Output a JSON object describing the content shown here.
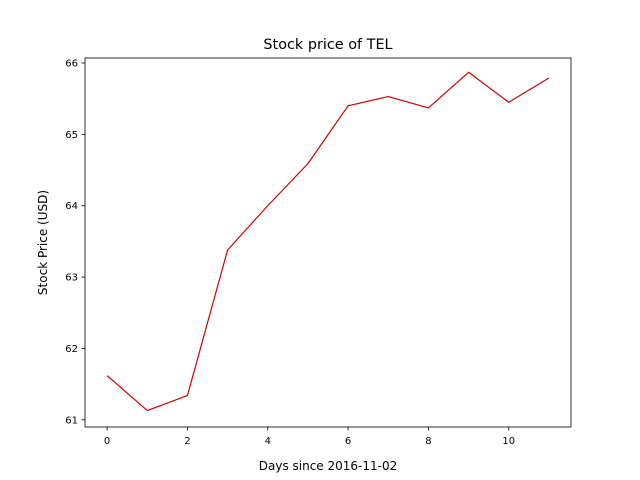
{
  "chart_data": {
    "type": "line",
    "title": "Stock price of TEL",
    "xlabel": "Days since 2016-11-02",
    "ylabel": "Stock Price (USD)",
    "x": [
      0,
      1,
      2,
      3,
      4,
      5,
      6,
      7,
      8,
      9,
      10,
      11
    ],
    "series": [
      {
        "values": [
          61.62,
          61.13,
          61.34,
          63.38,
          64.0,
          64.59,
          65.4,
          65.53,
          65.37,
          65.87,
          65.45,
          65.79
        ],
        "color": "#cc0000"
      }
    ],
    "xlim": [
      -0.55,
      11.55
    ],
    "ylim": [
      60.9,
      66.07
    ],
    "xticks": [
      0,
      2,
      4,
      6,
      8,
      10
    ],
    "yticks": [
      61,
      62,
      63,
      64,
      65,
      66
    ],
    "grid": false,
    "legend": "none"
  }
}
